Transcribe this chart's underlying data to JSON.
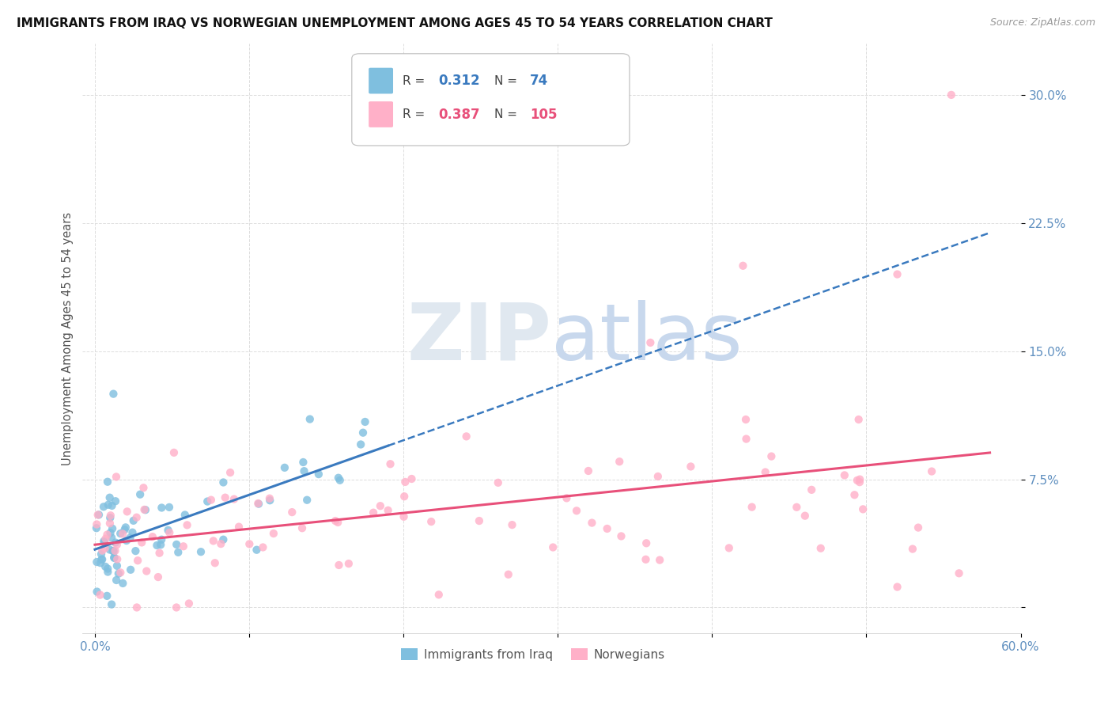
{
  "title": "IMMIGRANTS FROM IRAQ VS NORWEGIAN UNEMPLOYMENT AMONG AGES 45 TO 54 YEARS CORRELATION CHART",
  "source": "Source: ZipAtlas.com",
  "ylabel": "Unemployment Among Ages 45 to 54 years",
  "xlim": [
    0.0,
    0.6
  ],
  "ylim": [
    -0.015,
    0.33
  ],
  "yticks": [
    0.0,
    0.075,
    0.15,
    0.225,
    0.3
  ],
  "ytick_labels": [
    "",
    "7.5%",
    "15.0%",
    "22.5%",
    "30.0%"
  ],
  "xticks": [
    0.0,
    0.1,
    0.2,
    0.3,
    0.4,
    0.5,
    0.6
  ],
  "xtick_labels": [
    "0.0%",
    "",
    "",
    "",
    "",
    "",
    "60.0%"
  ],
  "legend_label1": "Immigrants from Iraq",
  "legend_label2": "Norwegians",
  "blue_color": "#7fbfdf",
  "pink_color": "#ffb0c8",
  "blue_line_color": "#3a7abf",
  "pink_line_color": "#e8507a",
  "n1": 74,
  "n2": 105,
  "r1": 0.312,
  "r2": 0.387,
  "background_color": "#ffffff",
  "grid_color": "#dddddd",
  "tick_color": "#6090c0",
  "text_color": "#555555"
}
